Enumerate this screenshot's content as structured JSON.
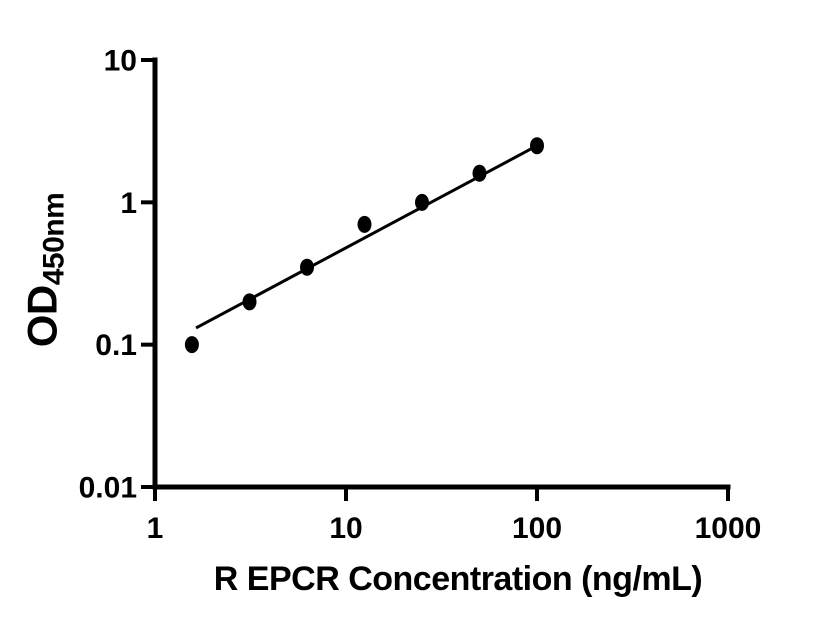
{
  "chart_data": {
    "type": "scatter",
    "title": "",
    "xlabel": "R EPCR Concentration (ng/mL)",
    "ylabel_main": "OD",
    "ylabel_sub": "450nm",
    "x_scale": "log",
    "y_scale": "log",
    "xlim": [
      1,
      1000
    ],
    "ylim": [
      0.01,
      10
    ],
    "grid": false,
    "legend": false,
    "x_ticks": [
      {
        "value": 1,
        "label": "1"
      },
      {
        "value": 10,
        "label": "10"
      },
      {
        "value": 100,
        "label": "100"
      },
      {
        "value": 1000,
        "label": "1000"
      }
    ],
    "y_ticks": [
      {
        "value": 10,
        "label": "10"
      },
      {
        "value": 1,
        "label": "1"
      },
      {
        "value": 0.1,
        "label": "0.1"
      },
      {
        "value": 0.01,
        "label": "0.01"
      }
    ],
    "points": [
      {
        "x": 1.56,
        "y": 0.1
      },
      {
        "x": 3.125,
        "y": 0.2
      },
      {
        "x": 6.25,
        "y": 0.35
      },
      {
        "x": 12.5,
        "y": 0.7
      },
      {
        "x": 25,
        "y": 1.0
      },
      {
        "x": 50,
        "y": 1.6
      },
      {
        "x": 100,
        "y": 2.5
      }
    ],
    "trend_line": {
      "x1": 1.64,
      "y1": 0.131,
      "x2": 100,
      "y2": 2.5
    },
    "marker_color": "#000000",
    "line_color": "#000000",
    "axis_color": "#000000",
    "background": "#ffffff"
  }
}
